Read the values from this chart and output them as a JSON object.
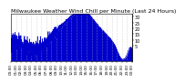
{
  "title": "Milwaukee Weather Wind Chill per Minute (Last 24 Hours)",
  "title_fontsize": 4.5,
  "line_color": "#0000cc",
  "fill_color": "#0000cc",
  "background_color": "#ffffff",
  "plot_bg_color": "#ffffff",
  "ylim": [
    -8,
    33
  ],
  "ytick_values": [
    5,
    10,
    15,
    20,
    25,
    30
  ],
  "ylabel_fontsize": 3.5,
  "xlabel_fontsize": 3.0,
  "num_points": 1440,
  "grid_color": "#bbbbbb",
  "num_xticks": 24
}
